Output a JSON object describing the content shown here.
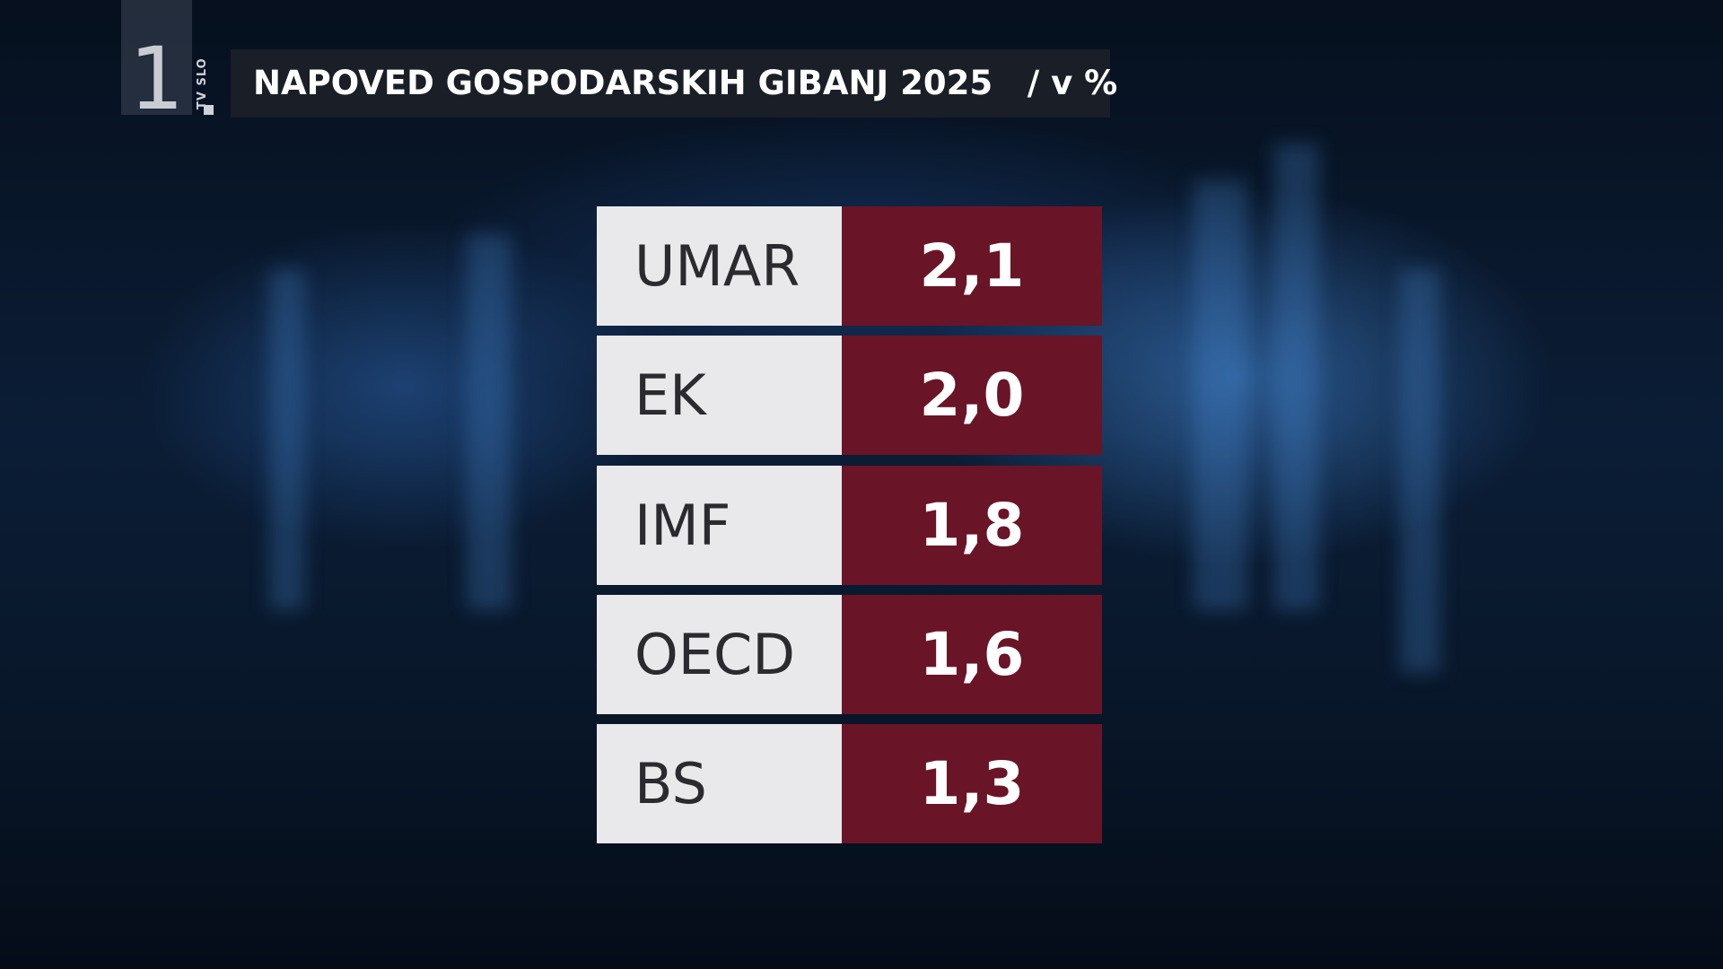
{
  "logo": {
    "channel": "1",
    "network": "TV SLO"
  },
  "header": {
    "title": "NAPOVED GOSPODARSKIH GIBANJ 2025",
    "unit": "/ v %"
  },
  "table": {
    "rows": [
      [
        "UMAR",
        "2,1"
      ],
      [
        "EK",
        "2,0"
      ],
      [
        "IMF",
        "1,8"
      ],
      [
        "OECD",
        "1,6"
      ],
      [
        "BS",
        "1,3"
      ]
    ]
  }
}
